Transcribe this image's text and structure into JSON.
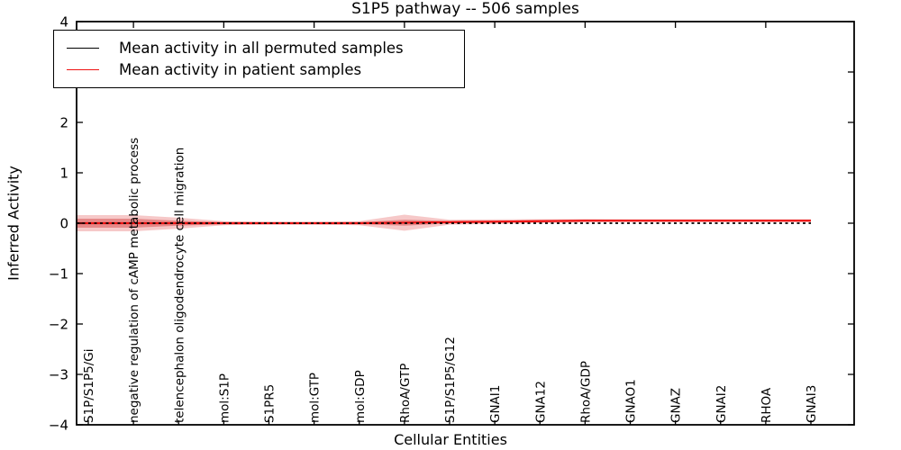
{
  "chart_data": {
    "type": "line",
    "title": "S1P5 pathway -- 506 samples",
    "xlabel": "Cellular Entities",
    "ylabel": "Inferred Activity",
    "ylim": [
      -4,
      4
    ],
    "yticks": [
      {
        "value": -4,
        "label": "−4"
      },
      {
        "value": -3,
        "label": "−3"
      },
      {
        "value": -2,
        "label": "−2"
      },
      {
        "value": -1,
        "label": "−1"
      },
      {
        "value": 0,
        "label": "0"
      },
      {
        "value": 1,
        "label": "1"
      },
      {
        "value": 2,
        "label": "2"
      },
      {
        "value": 3,
        "label": "3"
      },
      {
        "value": 4,
        "label": "4"
      }
    ],
    "top_tick_indices": [
      1,
      3,
      5,
      7,
      9,
      11,
      13,
      15
    ],
    "categories": [
      "S1P/S1P5/Gi",
      "negative regulation of cAMP metabolic process",
      "telencephalon oligodendrocyte cell migration",
      "mol:S1P",
      "S1PR5",
      "mol:GTP",
      "mol:GDP",
      "RhoA/GTP",
      "S1P/S1P5/G12",
      "GNAI1",
      "GNA12",
      "RhoA/GDP",
      "GNAO1",
      "GNAZ",
      "GNAI2",
      "RHOA",
      "GNAI3"
    ],
    "series": [
      {
        "name": "Mean activity in all permuted samples",
        "color": "#000000",
        "line_style": "dashed",
        "values": [
          0,
          0,
          0,
          0,
          0,
          0,
          0,
          0,
          0,
          0,
          0,
          0,
          0,
          0,
          0,
          0,
          0
        ]
      },
      {
        "name": "Mean activity in patient samples",
        "color": "#ee1111",
        "line_style": "solid",
        "values": [
          0,
          0,
          0,
          0,
          0,
          0,
          0,
          0.01,
          0.02,
          0.03,
          0.04,
          0.05,
          0.05,
          0.05,
          0.05,
          0.05,
          0.05
        ]
      }
    ],
    "bands": [
      {
        "name": "patient-std-outer",
        "color": "#dd3333",
        "opacity": 0.27,
        "upper": [
          0.16,
          0.16,
          0.11,
          0.04,
          0.03,
          0.03,
          0.04,
          0.17,
          0.07,
          0.075,
          0.08,
          0.085,
          0.08,
          0.08,
          0.08,
          0.08,
          0.08
        ],
        "lower": [
          -0.16,
          -0.16,
          -0.11,
          -0.04,
          -0.03,
          -0.03,
          -0.04,
          -0.15,
          -0.03,
          -0.015,
          0.0,
          0.015,
          0.02,
          0.02,
          0.02,
          0.02,
          0.02
        ]
      },
      {
        "name": "patient-std-inner",
        "color": "#cc2222",
        "opacity": 0.38,
        "upper": [
          0.09,
          0.09,
          0.05,
          0.02,
          0.015,
          0.015,
          0.02,
          0.07,
          0.045,
          0.05,
          0.06,
          0.065,
          0.065,
          0.065,
          0.065,
          0.065,
          0.065
        ],
        "lower": [
          -0.09,
          -0.09,
          -0.05,
          -0.02,
          -0.015,
          -0.015,
          -0.02,
          -0.05,
          -0.005,
          0.01,
          0.02,
          0.035,
          0.035,
          0.035,
          0.035,
          0.035,
          0.035
        ]
      }
    ],
    "legend": {
      "position": "upper left"
    },
    "grid": false
  }
}
